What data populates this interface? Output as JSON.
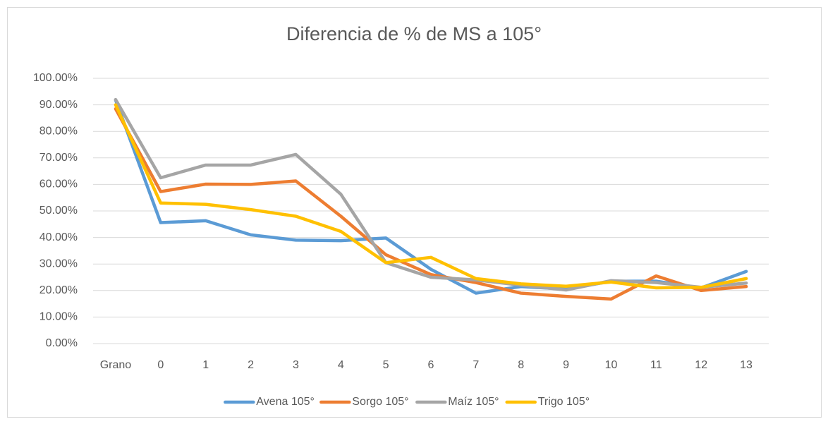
{
  "chart_data": {
    "type": "line",
    "title": "Diferencia de % de MS a 105°",
    "categories": [
      "Grano",
      "0",
      "1",
      "2",
      "3",
      "4",
      "5",
      "6",
      "7",
      "8",
      "9",
      "10",
      "11",
      "12",
      "13"
    ],
    "series": [
      {
        "name": "Avena 105°",
        "color": "#5b9bd5",
        "values": [
          91.8,
          45.6,
          46.3,
          41,
          39,
          38.8,
          39.8,
          28,
          19,
          21.5,
          20.5,
          23.5,
          23.5,
          21,
          27.2
        ]
      },
      {
        "name": "Sorgo 105°",
        "color": "#ed7d31",
        "values": [
          88.5,
          57.3,
          60.1,
          60,
          61.3,
          48,
          33.5,
          26,
          23,
          19,
          17.8,
          16.8,
          25.5,
          20,
          21.5
        ]
      },
      {
        "name": "Maíz 105°",
        "color": "#a5a5a5",
        "values": [
          92,
          62.5,
          67.3,
          67.3,
          71.3,
          56.3,
          30.5,
          25,
          24,
          22,
          20.2,
          23.7,
          23,
          21.2,
          22.8
        ]
      },
      {
        "name": "Trigo 105°",
        "color": "#ffc000",
        "values": [
          90,
          53,
          52.5,
          50.5,
          48,
          42.3,
          30.5,
          32.5,
          24.5,
          22.5,
          21.6,
          23.2,
          21,
          21.2,
          24.5
        ]
      }
    ],
    "ylim": [
      0,
      100
    ],
    "yticks": [
      {
        "value": 0,
        "label": "0.00%"
      },
      {
        "value": 10,
        "label": "10.00%"
      },
      {
        "value": 20,
        "label": "20.00%"
      },
      {
        "value": 30,
        "label": "30.00%"
      },
      {
        "value": 40,
        "label": "40.00%"
      },
      {
        "value": 50,
        "label": "50.00%"
      },
      {
        "value": 60,
        "label": "60.00%"
      },
      {
        "value": 70,
        "label": "70.00%"
      },
      {
        "value": 80,
        "label": "80.00%"
      },
      {
        "value": 90,
        "label": "90.00%"
      },
      {
        "value": 100,
        "label": "100.00%"
      }
    ],
    "grid": true,
    "legend": "bottom"
  }
}
